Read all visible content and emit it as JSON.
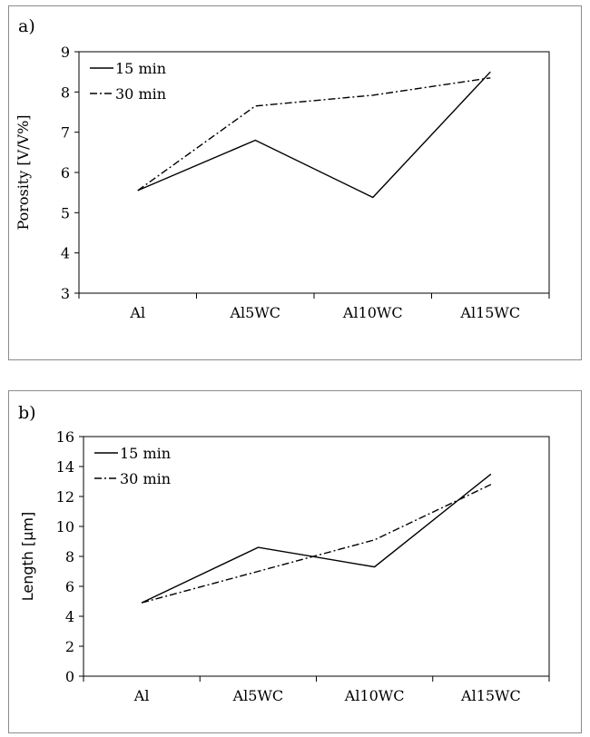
{
  "chart_data": [
    {
      "type": "line",
      "panel_label": "a)",
      "title": "",
      "xlabel": "",
      "ylabel": "Porosity [V/V%]",
      "categories": [
        "Al",
        "Al5WC",
        "Al10WC",
        "Al15WC"
      ],
      "ylim": [
        3,
        9
      ],
      "yticks": [
        3,
        4,
        5,
        6,
        7,
        8,
        9
      ],
      "legend_position": "top-left",
      "grid": false,
      "series": [
        {
          "name": "15 min",
          "style": "solid",
          "values": [
            5.55,
            6.8,
            5.38,
            8.5
          ]
        },
        {
          "name": "30 min",
          "style": "dash-dot",
          "values": [
            5.55,
            7.65,
            7.92,
            8.35
          ]
        }
      ]
    },
    {
      "type": "line",
      "panel_label": "b)",
      "title": "",
      "xlabel": "",
      "ylabel": "Length [μm]",
      "categories": [
        "Al",
        "Al5WC",
        "Al10WC",
        "Al15WC"
      ],
      "ylim": [
        0,
        16
      ],
      "yticks": [
        0,
        2,
        4,
        6,
        8,
        10,
        12,
        14,
        16
      ],
      "legend_position": "top-left",
      "grid": false,
      "series": [
        {
          "name": "15 min",
          "style": "solid",
          "values": [
            4.9,
            8.6,
            7.3,
            13.5
          ]
        },
        {
          "name": "30 min",
          "style": "dash-dot",
          "values": [
            4.9,
            7.0,
            9.1,
            12.8
          ]
        }
      ]
    }
  ]
}
